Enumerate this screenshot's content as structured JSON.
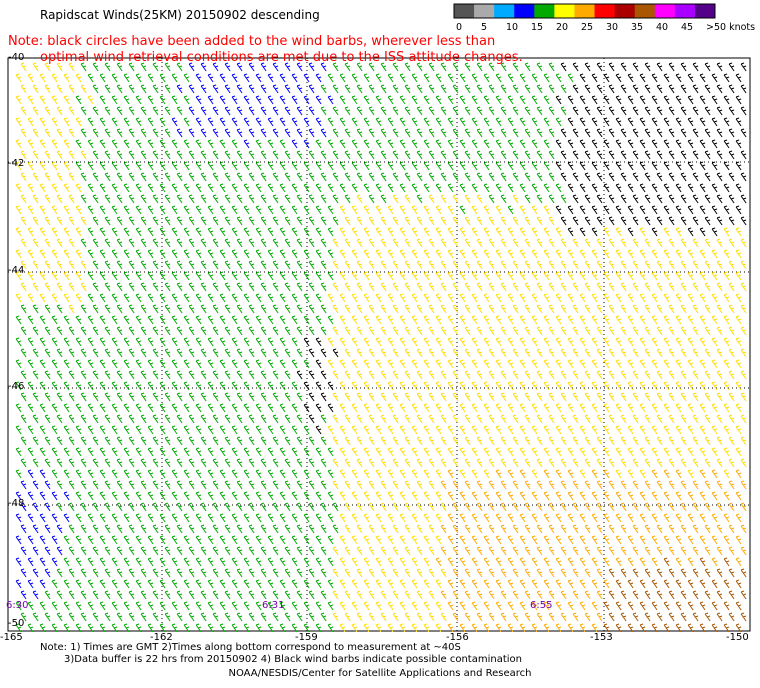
{
  "header": {
    "title": "Rapidscat Winds(25KM) 20150902 descending"
  },
  "note": {
    "line1": "Note: black circles have been added to the wind barbs, wherever less than",
    "line2": "optimal wind retrieval conditions are met due to the ISS attitude changes."
  },
  "legend": {
    "labels": [
      "0",
      "5",
      "10",
      "15",
      "20",
      "25",
      "30",
      "35",
      "40",
      "45",
      ">50 knots"
    ],
    "colors": [
      "#555555",
      "#aaaaaa",
      "#00aaff",
      "#0000ff",
      "#00aa00",
      "#ffff00",
      "#ffaa00",
      "#ff0000",
      "#aa0000",
      "#aa5500",
      "#ff00ff",
      "#aa00ff",
      "#550088"
    ]
  },
  "map": {
    "lat_labels": [
      "-40",
      "-42",
      "-44",
      "-46",
      "-48",
      "-50"
    ],
    "lon_labels": [
      "-165",
      "-162",
      "-159",
      "-156",
      "-153",
      "-150"
    ],
    "time_labels": [
      "6:30",
      "6:31",
      "6:55"
    ]
  },
  "footer": {
    "line1": "Note: 1) Times are GMT 2)Times along bottom correspond to measurement at ~40S",
    "line2": "3)Data buffer is 22 hrs from 20150902 4) Black wind barbs indicate possible contamination",
    "credit": "NOAA/NESDIS/Center for Satellite Applications and Research"
  }
}
